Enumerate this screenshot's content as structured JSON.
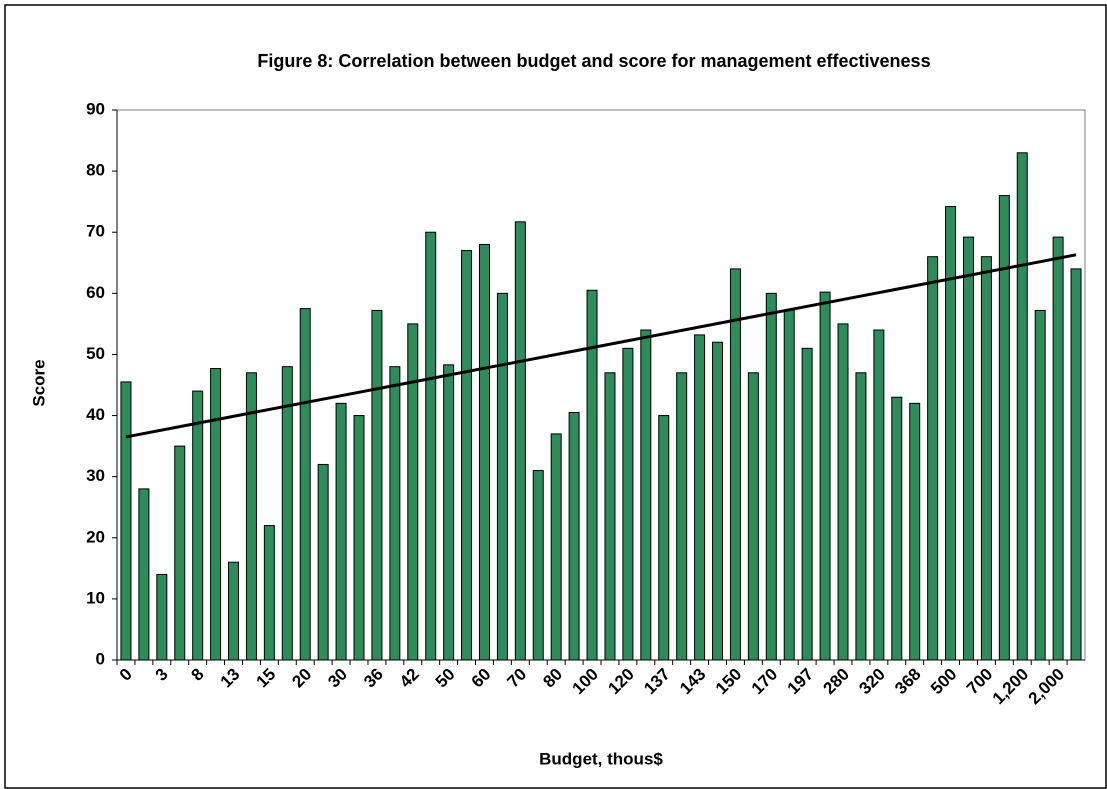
{
  "chart_data": {
    "type": "bar",
    "title": "Figure 8: Correlation between budget and score for management effectiveness",
    "x_label": "Budget, thous$",
    "y_label": "Score",
    "categories": [
      "0",
      null,
      "3",
      null,
      "8",
      null,
      "13",
      null,
      "15",
      null,
      "20",
      null,
      "30",
      null,
      "36",
      null,
      "42",
      null,
      "50",
      null,
      "60",
      null,
      "70",
      null,
      "80",
      null,
      "100",
      null,
      "120",
      null,
      "137",
      null,
      "143",
      null,
      "150",
      null,
      "170",
      null,
      "197",
      null,
      "280",
      null,
      "320",
      null,
      "368",
      null,
      "500",
      null,
      "700",
      null,
      "1,200",
      null,
      "2,000",
      null
    ],
    "values": [
      45.5,
      28,
      14,
      35,
      44,
      47.7,
      16,
      47,
      22,
      48,
      57.5,
      32,
      42,
      40,
      57.2,
      48,
      55,
      70,
      48.3,
      67,
      68,
      60,
      71.7,
      31,
      37,
      40.5,
      60.5,
      47,
      51,
      54,
      40,
      47,
      53.2,
      52,
      64,
      47,
      60,
      57.3,
      51,
      60.2,
      55,
      47,
      54,
      43,
      42,
      66,
      74.2,
      69.2,
      66,
      76,
      83,
      57.2,
      69.2,
      64
    ],
    "color": "#2e8b5a",
    "trendline": {
      "start": 36.5,
      "end": 66.3,
      "color": "#000000"
    },
    "ylim": [
      0,
      90
    ],
    "yticks": [
      0,
      10,
      20,
      30,
      40,
      50,
      60,
      70,
      80,
      90
    ],
    "grid": false
  }
}
